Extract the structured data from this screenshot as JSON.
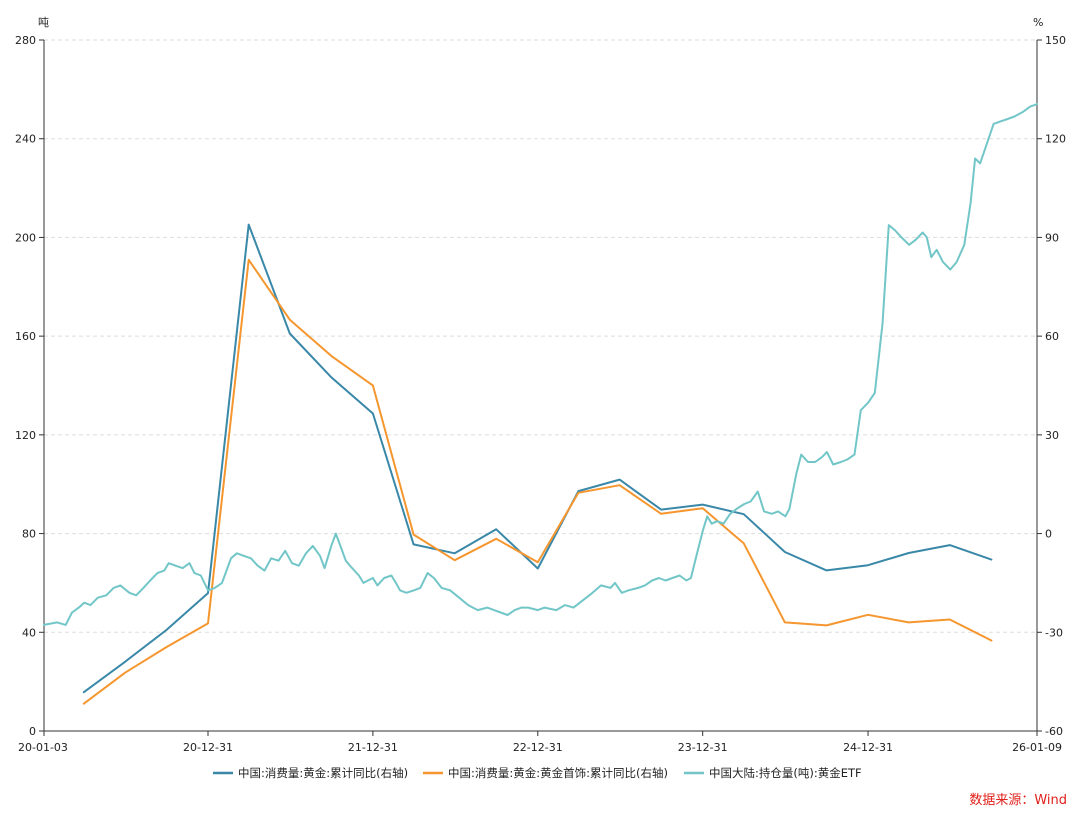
{
  "colors": {
    "consumption": "#3a88a8",
    "jewelry": "#f5962f",
    "etf": "#72c6c8",
    "axis": "#333333",
    "grid": "#dddddd",
    "source": "#e0201a"
  },
  "source_text": "数据来源：Wind",
  "chart_data": {
    "type": "line",
    "title": "",
    "left_axis": {
      "unit": "吨",
      "min": 0,
      "max": 280,
      "ticks": [
        0,
        40,
        80,
        120,
        160,
        200,
        240,
        280
      ]
    },
    "right_axis": {
      "unit": "%",
      "min": -60,
      "max": 150,
      "ticks": [
        -60,
        -30,
        0,
        30,
        60,
        90,
        120,
        150
      ]
    },
    "x_axis": {
      "start": "2020-01-03",
      "end": "2026-01-09",
      "ticks": [
        {
          "date": "2020-01-03",
          "label": "20-01-03"
        },
        {
          "date": "2020-12-31",
          "label": "20-12-31"
        },
        {
          "date": "2021-12-31",
          "label": "21-12-31"
        },
        {
          "date": "2022-12-31",
          "label": "22-12-31"
        },
        {
          "date": "2023-12-31",
          "label": "23-12-31"
        },
        {
          "date": "2024-12-31",
          "label": "24-12-31"
        },
        {
          "date": "2026-01-09",
          "label": "26-01-09"
        }
      ]
    },
    "grid": "horizontal dashed",
    "legend_position": "bottom",
    "series": [
      {
        "name": "中国:消费量:黄金:累计同比(右轴)",
        "axis": "right",
        "color": "#3a88a8",
        "points": [
          [
            "2020-03-31",
            -48.2
          ],
          [
            "2020-06-30",
            -39.0
          ],
          [
            "2020-09-30",
            -29.3
          ],
          [
            "2020-12-31",
            -18.1
          ],
          [
            "2021-03-31",
            93.9
          ],
          [
            "2021-06-30",
            60.8
          ],
          [
            "2021-09-30",
            47.5
          ],
          [
            "2021-12-31",
            36.5
          ],
          [
            "2022-03-31",
            -3.3
          ],
          [
            "2022-06-30",
            -6.0
          ],
          [
            "2022-09-30",
            1.3
          ],
          [
            "2022-12-31",
            -10.6
          ],
          [
            "2023-03-31",
            12.9
          ],
          [
            "2023-06-30",
            16.4
          ],
          [
            "2023-09-30",
            7.3
          ],
          [
            "2023-12-31",
            8.8
          ],
          [
            "2024-03-31",
            5.9
          ],
          [
            "2024-06-30",
            -5.6
          ],
          [
            "2024-09-30",
            -11.2
          ],
          [
            "2024-12-31",
            -9.6
          ],
          [
            "2025-03-31",
            -5.9
          ],
          [
            "2025-06-30",
            -3.5
          ],
          [
            "2025-09-30",
            -7.9
          ]
        ]
      },
      {
        "name": "中国:消费量:黄金:黄金首饰:累计同比(右轴)",
        "axis": "right",
        "color": "#f5962f",
        "points": [
          [
            "2020-03-31",
            -51.7
          ],
          [
            "2020-06-30",
            -42.3
          ],
          [
            "2020-09-30",
            -34.5
          ],
          [
            "2020-12-31",
            -27.3
          ],
          [
            "2021-03-31",
            83.2
          ],
          [
            "2021-06-30",
            65.0
          ],
          [
            "2021-09-30",
            54.0
          ],
          [
            "2021-12-31",
            45.0
          ],
          [
            "2022-03-31",
            -0.3
          ],
          [
            "2022-06-30",
            -8.1
          ],
          [
            "2022-09-30",
            -1.6
          ],
          [
            "2022-12-31",
            -8.7
          ],
          [
            "2023-03-31",
            12.4
          ],
          [
            "2023-06-30",
            14.7
          ],
          [
            "2023-09-30",
            6.0
          ],
          [
            "2023-12-31",
            7.7
          ],
          [
            "2024-03-31",
            -3.0
          ],
          [
            "2024-06-30",
            -27.0
          ],
          [
            "2024-09-30",
            -27.9
          ],
          [
            "2024-12-31",
            -24.7
          ],
          [
            "2025-03-31",
            -27.0
          ],
          [
            "2025-06-30",
            -26.1
          ],
          [
            "2025-09-30",
            -32.5
          ]
        ]
      },
      {
        "name": "中国大陆:持仓量(吨):黄金ETF",
        "axis": "left",
        "color": "#72c6c8",
        "points": [
          [
            "2020-01-03",
            43
          ],
          [
            "2020-02-01",
            44
          ],
          [
            "2020-02-20",
            43
          ],
          [
            "2020-03-05",
            48
          ],
          [
            "2020-03-20",
            50
          ],
          [
            "2020-04-01",
            52
          ],
          [
            "2020-04-15",
            51
          ],
          [
            "2020-05-01",
            54
          ],
          [
            "2020-05-20",
            55
          ],
          [
            "2020-06-05",
            58
          ],
          [
            "2020-06-20",
            59
          ],
          [
            "2020-07-10",
            56
          ],
          [
            "2020-07-25",
            55
          ],
          [
            "2020-08-10",
            58
          ],
          [
            "2020-08-25",
            61
          ],
          [
            "2020-09-10",
            64
          ],
          [
            "2020-09-25",
            65
          ],
          [
            "2020-10-05",
            68
          ],
          [
            "2020-10-20",
            67
          ],
          [
            "2020-11-05",
            66
          ],
          [
            "2020-11-20",
            68
          ],
          [
            "2020-12-01",
            64
          ],
          [
            "2020-12-15",
            63
          ],
          [
            "2020-12-31",
            57
          ],
          [
            "2021-01-15",
            58
          ],
          [
            "2021-01-31",
            60
          ],
          [
            "2021-02-10",
            65
          ],
          [
            "2021-02-20",
            70
          ],
          [
            "2021-03-05",
            72
          ],
          [
            "2021-03-20",
            71
          ],
          [
            "2021-04-05",
            70
          ],
          [
            "2021-04-20",
            67
          ],
          [
            "2021-05-05",
            65
          ],
          [
            "2021-05-20",
            70
          ],
          [
            "2021-06-05",
            69
          ],
          [
            "2021-06-20",
            73
          ],
          [
            "2021-07-05",
            68
          ],
          [
            "2021-07-20",
            67
          ],
          [
            "2021-08-05",
            72
          ],
          [
            "2021-08-20",
            75
          ],
          [
            "2021-09-05",
            71
          ],
          [
            "2021-09-15",
            66
          ],
          [
            "2021-09-30",
            75
          ],
          [
            "2021-10-10",
            80
          ],
          [
            "2021-10-20",
            75
          ],
          [
            "2021-11-01",
            69
          ],
          [
            "2021-11-15",
            66
          ],
          [
            "2021-11-30",
            63
          ],
          [
            "2021-12-10",
            60
          ],
          [
            "2021-12-31",
            62
          ],
          [
            "2022-01-10",
            59
          ],
          [
            "2022-01-25",
            62
          ],
          [
            "2022-02-10",
            63
          ],
          [
            "2022-02-20",
            60
          ],
          [
            "2022-03-01",
            57
          ],
          [
            "2022-03-15",
            56
          ],
          [
            "2022-04-01",
            57
          ],
          [
            "2022-04-15",
            58
          ],
          [
            "2022-05-01",
            64
          ],
          [
            "2022-05-15",
            62
          ],
          [
            "2022-06-01",
            58
          ],
          [
            "2022-06-20",
            57
          ],
          [
            "2022-07-10",
            54
          ],
          [
            "2022-07-30",
            51
          ],
          [
            "2022-08-20",
            49
          ],
          [
            "2022-09-10",
            50
          ],
          [
            "2022-09-25",
            49
          ],
          [
            "2022-10-10",
            48
          ],
          [
            "2022-10-25",
            47
          ],
          [
            "2022-11-10",
            49
          ],
          [
            "2022-11-25",
            50
          ],
          [
            "2022-12-10",
            50
          ],
          [
            "2022-12-31",
            49
          ],
          [
            "2023-01-15",
            50
          ],
          [
            "2023-02-10",
            49
          ],
          [
            "2023-03-01",
            51
          ],
          [
            "2023-03-20",
            50
          ],
          [
            "2023-04-10",
            53
          ],
          [
            "2023-05-01",
            56
          ],
          [
            "2023-05-20",
            59
          ],
          [
            "2023-06-10",
            58
          ],
          [
            "2023-06-20",
            60
          ],
          [
            "2023-07-05",
            56
          ],
          [
            "2023-07-20",
            57
          ],
          [
            "2023-08-10",
            58
          ],
          [
            "2023-08-25",
            59
          ],
          [
            "2023-09-10",
            61
          ],
          [
            "2023-09-25",
            62
          ],
          [
            "2023-10-10",
            61
          ],
          [
            "2023-10-25",
            62
          ],
          [
            "2023-11-10",
            63
          ],
          [
            "2023-11-25",
            61
          ],
          [
            "2023-12-05",
            62
          ],
          [
            "2023-12-20",
            73
          ],
          [
            "2023-12-31",
            81
          ],
          [
            "2024-01-10",
            87
          ],
          [
            "2024-01-20",
            84
          ],
          [
            "2024-02-01",
            85
          ],
          [
            "2024-02-15",
            84
          ],
          [
            "2024-03-01",
            88
          ],
          [
            "2024-03-15",
            90
          ],
          [
            "2024-04-01",
            92
          ],
          [
            "2024-04-15",
            93
          ],
          [
            "2024-05-01",
            97
          ],
          [
            "2024-05-15",
            89
          ],
          [
            "2024-06-01",
            88
          ],
          [
            "2024-06-15",
            89
          ],
          [
            "2024-07-01",
            87
          ],
          [
            "2024-07-10",
            90
          ],
          [
            "2024-07-25",
            104
          ],
          [
            "2024-08-05",
            112
          ],
          [
            "2024-08-20",
            109
          ],
          [
            "2024-09-05",
            109
          ],
          [
            "2024-09-20",
            111
          ],
          [
            "2024-10-01",
            113
          ],
          [
            "2024-10-15",
            108
          ],
          [
            "2024-11-01",
            109
          ],
          [
            "2024-11-15",
            110
          ],
          [
            "2024-12-01",
            112
          ],
          [
            "2024-12-15",
            130
          ],
          [
            "2024-12-31",
            133
          ],
          [
            "2025-01-15",
            137
          ],
          [
            "2025-02-01",
            165
          ],
          [
            "2025-02-15",
            205
          ],
          [
            "2025-02-28",
            203
          ],
          [
            "2025-03-15",
            200
          ],
          [
            "2025-04-01",
            197
          ],
          [
            "2025-04-15",
            199
          ],
          [
            "2025-05-01",
            202
          ],
          [
            "2025-05-10",
            200
          ],
          [
            "2025-05-20",
            192
          ],
          [
            "2025-06-01",
            195
          ],
          [
            "2025-06-15",
            190
          ],
          [
            "2025-07-01",
            187
          ],
          [
            "2025-07-15",
            190
          ],
          [
            "2025-08-01",
            197
          ],
          [
            "2025-08-15",
            214
          ],
          [
            "2025-08-25",
            232
          ],
          [
            "2025-09-05",
            230
          ],
          [
            "2025-09-20",
            238
          ],
          [
            "2025-10-05",
            246
          ],
          [
            "2025-10-20",
            247
          ],
          [
            "2025-11-05",
            248
          ],
          [
            "2025-11-20",
            249
          ],
          [
            "2025-12-10",
            251
          ],
          [
            "2025-12-25",
            253
          ],
          [
            "2026-01-09",
            254
          ]
        ]
      }
    ]
  }
}
